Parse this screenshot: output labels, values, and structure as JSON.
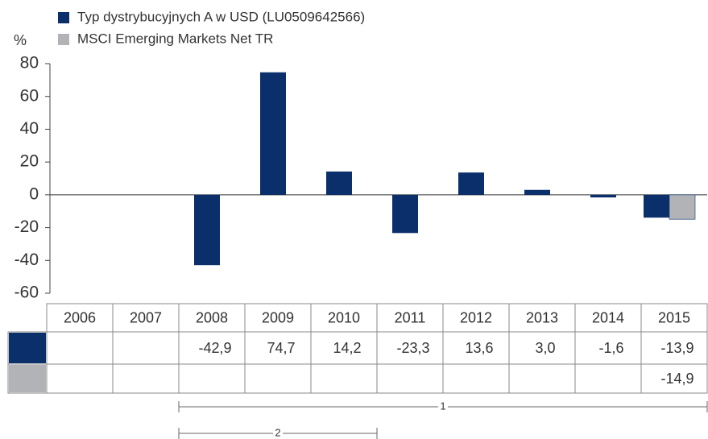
{
  "chart_data": {
    "type": "bar",
    "y_label": "%",
    "categories": [
      "2006",
      "2007",
      "2008",
      "2009",
      "2010",
      "2011",
      "2012",
      "2013",
      "2014",
      "2015"
    ],
    "series": [
      {
        "name": "Typ dystrybucyjnych A w USD (LU0509642566)",
        "color": "#0b2f6b",
        "values": [
          null,
          null,
          -42.9,
          74.7,
          14.2,
          -23.3,
          13.6,
          3.0,
          -1.6,
          -13.9
        ],
        "value_labels": [
          null,
          null,
          "-42,9",
          "74,7",
          "14,2",
          "-23,3",
          "13,6",
          "3,0",
          "-1,6",
          "-13,9"
        ]
      },
      {
        "name": "MSCI Emerging Markets Net TR",
        "color": "#b1b3b6",
        "values": [
          null,
          null,
          null,
          null,
          null,
          null,
          null,
          null,
          null,
          -14.9
        ],
        "value_labels": [
          null,
          null,
          null,
          null,
          null,
          null,
          null,
          null,
          null,
          "-14,9"
        ]
      }
    ],
    "ylim": [
      -60,
      80
    ],
    "yticks": [
      -60,
      -40,
      -20,
      0,
      20,
      40,
      60,
      80
    ],
    "annotations": [
      "1",
      "2"
    ]
  }
}
